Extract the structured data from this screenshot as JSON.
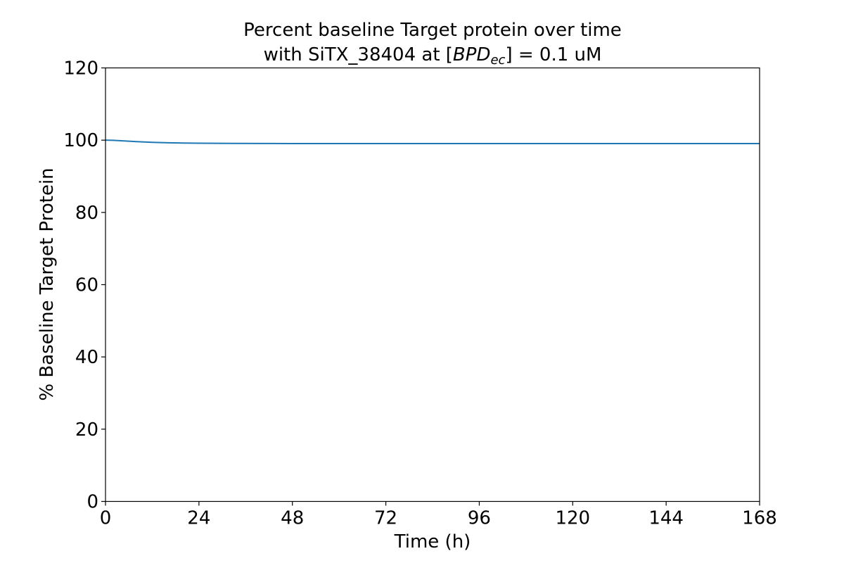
{
  "chart_data": {
    "type": "line",
    "title_line1": "Percent baseline Target protein over time",
    "title_line2_prefix": "with SiTX_38404 at [",
    "title_line2_var": "BPD",
    "title_line2_sub": "ec",
    "title_line2_suffix": "] = 0.1 uM",
    "xlabel": "Time (h)",
    "ylabel": "% Baseline Target Protein",
    "xlim": [
      0,
      168
    ],
    "ylim": [
      0,
      120
    ],
    "xticks": [
      "0",
      "24",
      "48",
      "72",
      "96",
      "120",
      "144",
      "168"
    ],
    "yticks": [
      "0",
      "20",
      "40",
      "60",
      "80",
      "100",
      "120"
    ],
    "grid": false,
    "series": [
      {
        "color": "#1f77b4",
        "x": [
          0,
          2,
          4,
          6,
          8,
          12,
          16,
          20,
          24,
          32,
          40,
          48,
          72,
          96,
          120,
          144,
          168
        ],
        "y": [
          100,
          99.95,
          99.85,
          99.72,
          99.6,
          99.4,
          99.28,
          99.2,
          99.15,
          99.1,
          99.08,
          99.07,
          99.06,
          99.06,
          99.06,
          99.06,
          99.06
        ]
      }
    ]
  }
}
